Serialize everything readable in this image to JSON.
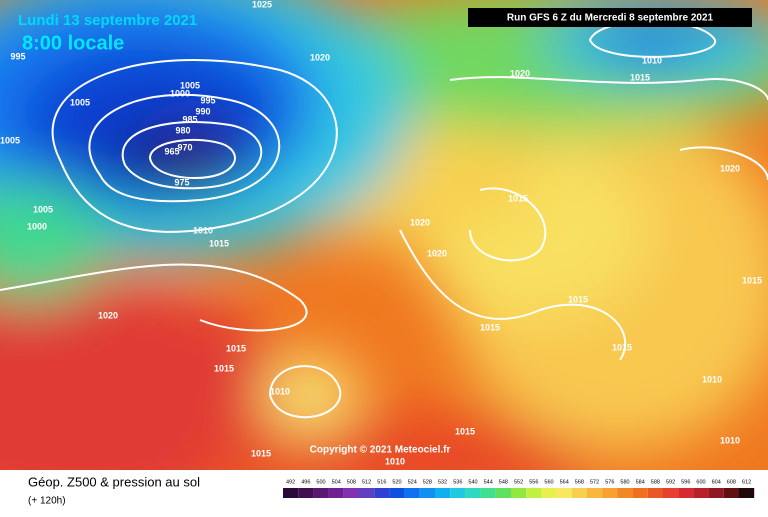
{
  "header": {
    "date": "Lundi 13 septembre 2021",
    "time": "8:00 locale",
    "run": "Run GFS 6 Z du Mercredi 8 septembre 2021"
  },
  "copyright": "Copyright © 2021 Meteociel.fr",
  "isobar_labels": [
    1025,
    995,
    1005,
    1005,
    1000,
    1005,
    995,
    990,
    985,
    980,
    970,
    965,
    975,
    1020,
    1020,
    1010,
    1015,
    1015,
    1020,
    1020,
    1010,
    1015,
    1005,
    1000,
    1020,
    1015,
    1015,
    1010,
    1015,
    1015,
    1015,
    1010,
    1020,
    1015,
    1015,
    1010,
    1015,
    1010
  ],
  "footer": {
    "title": "Géop. Z500 & pression au sol",
    "lead": "(+ 120h)"
  },
  "legend": {
    "levels": [
      492,
      496,
      500,
      504,
      508,
      512,
      516,
      520,
      524,
      528,
      532,
      536,
      540,
      544,
      548,
      552,
      556,
      560,
      564,
      568,
      572,
      576,
      580,
      584,
      588,
      592,
      596,
      600,
      604,
      608,
      612
    ],
    "colors": [
      "#2a0a3a",
      "#40104f",
      "#5a1870",
      "#702090",
      "#8030b0",
      "#6040c0",
      "#3040d0",
      "#1050e0",
      "#1070f0",
      "#1090f0",
      "#10b0f0",
      "#20c8e0",
      "#30d8c0",
      "#40e090",
      "#60e060",
      "#90e840",
      "#c0f040",
      "#e8f050",
      "#f8e860",
      "#f8d050",
      "#f8b840",
      "#f8a030",
      "#f08828",
      "#f07020",
      "#e85828",
      "#e84030",
      "#d82830",
      "#b82028",
      "#901820",
      "#601010",
      "#200808"
    ]
  }
}
